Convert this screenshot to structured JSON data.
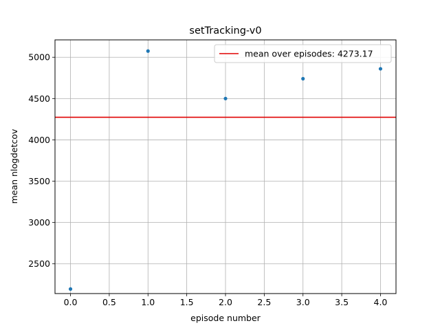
{
  "chart_data": {
    "type": "scatter",
    "title": "setTracking-v0",
    "xlabel": "episode number",
    "ylabel": "mean nlogdetcov",
    "xlim": [
      -0.2,
      4.2
    ],
    "ylim": [
      2140,
      5210
    ],
    "xticks": [
      0.0,
      0.5,
      1.0,
      1.5,
      2.0,
      2.5,
      3.0,
      3.5,
      4.0
    ],
    "xtick_labels": [
      "0.0",
      "0.5",
      "1.0",
      "1.5",
      "2.0",
      "2.5",
      "3.0",
      "3.5",
      "4.0"
    ],
    "yticks": [
      2500,
      3000,
      3500,
      4000,
      4500,
      5000
    ],
    "ytick_labels": [
      "2500",
      "3000",
      "3500",
      "4000",
      "4500",
      "5000"
    ],
    "grid": true,
    "legend_position": "top-right",
    "series": [
      {
        "x": [
          0,
          1,
          2,
          3,
          4
        ],
        "y": [
          2195,
          5075,
          4500,
          4740,
          4860
        ],
        "color": "#1f77b4",
        "marker": "circle"
      }
    ],
    "hlines": [
      {
        "y": 4273.17,
        "color": "#e00000",
        "label": "mean over episodes: 4273.17"
      }
    ]
  }
}
